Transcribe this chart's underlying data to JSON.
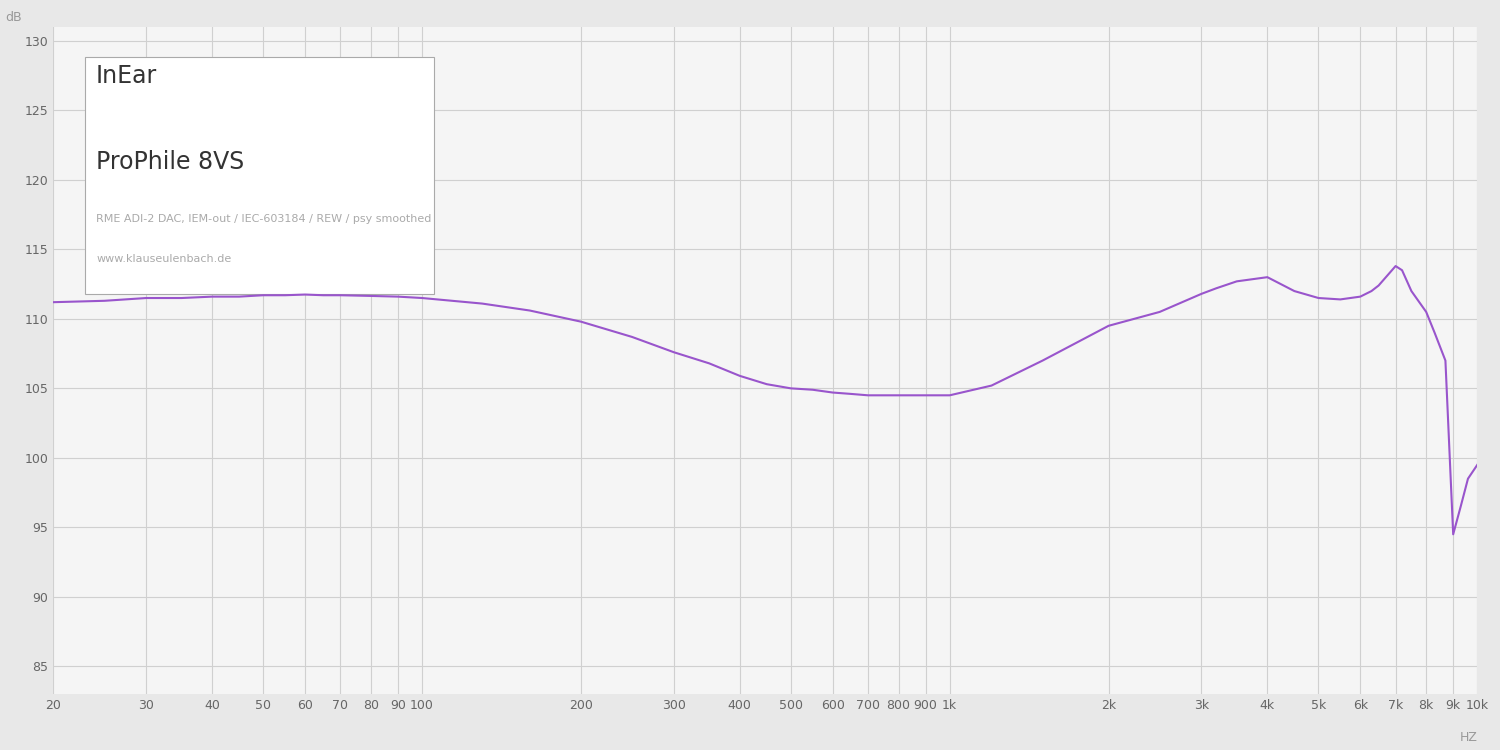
{
  "title_line1": "InEar",
  "title_line2": "ProPhile 8VS",
  "subtitle": "RME ADI-2 DAC, IEM-out / IEC-603184 / REW / psy smoothed",
  "website": "www.klauseulenbach.de",
  "ylabel": "dB",
  "xlabel": "HZ",
  "ylim": [
    83,
    131
  ],
  "yticks": [
    85,
    90,
    95,
    100,
    105,
    110,
    115,
    120,
    125,
    130
  ],
  "line_color": "#9955cc",
  "bg_color": "#e8e8e8",
  "plot_bg_color": "#f5f5f5",
  "grid_color": "#d0d0d0",
  "freq_points": [
    20,
    25,
    30,
    35,
    40,
    45,
    50,
    55,
    60,
    65,
    70,
    80,
    90,
    100,
    130,
    160,
    200,
    250,
    300,
    350,
    400,
    450,
    500,
    550,
    600,
    650,
    700,
    750,
    800,
    850,
    900,
    950,
    1000,
    1200,
    1500,
    2000,
    2500,
    3000,
    3200,
    3500,
    4000,
    4500,
    5000,
    5500,
    6000,
    6300,
    6500,
    7000,
    7200,
    7500,
    8000,
    8300,
    8700,
    9000,
    9300,
    9600,
    10000
  ],
  "db_values": [
    111.2,
    111.3,
    111.5,
    111.5,
    111.6,
    111.6,
    111.7,
    111.7,
    111.75,
    111.7,
    111.7,
    111.65,
    111.6,
    111.5,
    111.1,
    110.6,
    109.8,
    108.7,
    107.6,
    106.8,
    105.9,
    105.3,
    105.0,
    104.9,
    104.7,
    104.6,
    104.5,
    104.5,
    104.5,
    104.5,
    104.5,
    104.5,
    104.5,
    105.2,
    107.0,
    109.5,
    110.5,
    111.8,
    112.2,
    112.7,
    113.0,
    112.0,
    111.5,
    111.4,
    111.6,
    112.0,
    112.4,
    113.8,
    113.5,
    112.0,
    110.5,
    109.0,
    107.0,
    94.5,
    96.5,
    98.5,
    99.5
  ]
}
